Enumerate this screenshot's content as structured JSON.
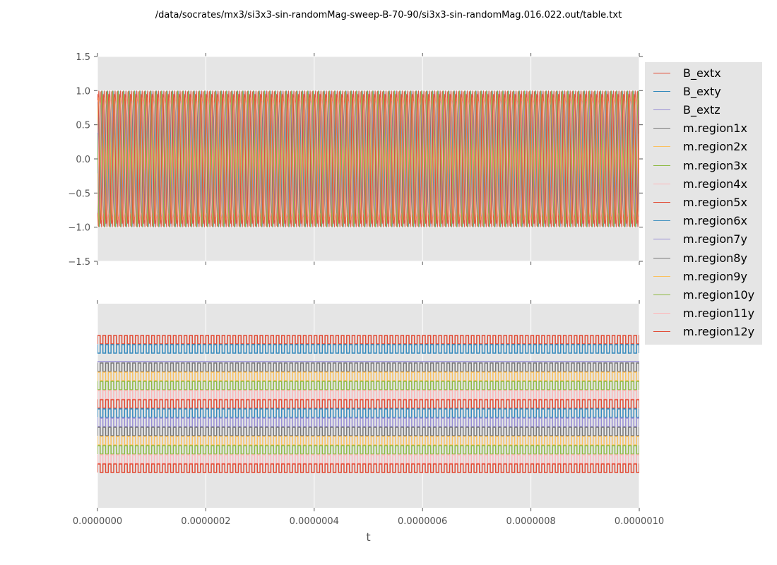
{
  "title": "/data/socrates/mx3/si3x3-sin-randomMag-sweep-B-70-90/si3x3-sin-randomMag.016.022.out/table.txt",
  "chart_data": [
    {
      "type": "line",
      "panel": "top",
      "xlim": [
        0,
        1e-06
      ],
      "ylim": [
        -1.5,
        1.5
      ],
      "xticks": [
        0,
        2e-07,
        4e-07,
        6e-07,
        8e-07,
        1e-06
      ],
      "yticks": [
        1.5,
        1.0,
        0.5,
        0.0,
        -0.5,
        -1.0,
        -1.5
      ],
      "ytick_labels": [
        "1.5",
        "1.0",
        "0.5",
        "0.0",
        "−0.5",
        "−1.0",
        "−1.5"
      ],
      "grid": true,
      "background": "#e5e5e5",
      "waveform": "sinusoidal oscillation between -1 and 1",
      "amplitude": 1.0,
      "frequency_hz": 100000000.0
    },
    {
      "type": "line",
      "panel": "bottom",
      "xlim": [
        0,
        1e-06
      ],
      "xticks": [
        0,
        2e-07,
        4e-07,
        6e-07,
        8e-07,
        1e-06
      ],
      "xtick_labels": [
        "0.0000000",
        "0.0000002",
        "0.0000004",
        "0.0000006",
        "0.0000008",
        "0.0000010"
      ],
      "xlabel": "t",
      "yticks": [],
      "grid": true,
      "background": "#e5e5e5",
      "waveform": "stacked square waves, one per series; B_extz flat",
      "frequency_hz": 100000000.0
    }
  ],
  "legend": {
    "placement": "right",
    "series": [
      {
        "name": "B_extx",
        "color": "#E24A33"
      },
      {
        "name": "B_exty",
        "color": "#348ABD"
      },
      {
        "name": "B_extz",
        "color": "#988ED5"
      },
      {
        "name": "m.region1x",
        "color": "#777777"
      },
      {
        "name": "m.region2x",
        "color": "#FBC15E"
      },
      {
        "name": "m.region3x",
        "color": "#8EBA42"
      },
      {
        "name": "m.region4x",
        "color": "#FFB5B8"
      },
      {
        "name": "m.region5x",
        "color": "#E24A33"
      },
      {
        "name": "m.region6x",
        "color": "#348ABD"
      },
      {
        "name": "m.region7y",
        "color": "#988ED5"
      },
      {
        "name": "m.region8y",
        "color": "#777777"
      },
      {
        "name": "m.region9y",
        "color": "#FBC15E"
      },
      {
        "name": "m.region10y",
        "color": "#8EBA42"
      },
      {
        "name": "m.region11y",
        "color": "#FFB5B8"
      },
      {
        "name": "m.region12y",
        "color": "#E24A33"
      }
    ]
  }
}
